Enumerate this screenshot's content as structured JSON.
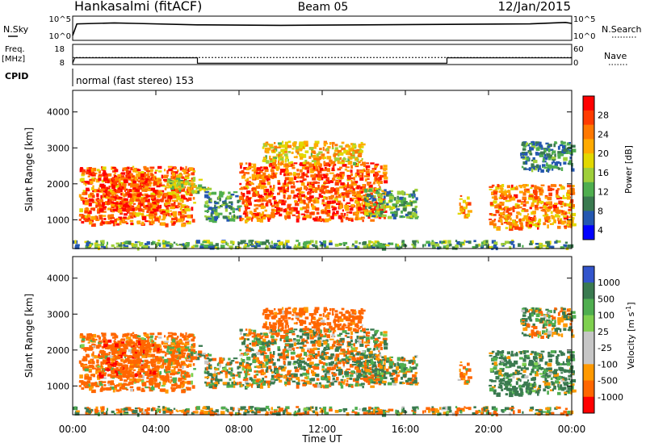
{
  "header": {
    "station": "Hankasalmi (fitACF)",
    "beam": "Beam 05",
    "date": "12/Jan/2015"
  },
  "strip": {
    "nsky_label": "N.Sky",
    "nsky_ticks": [
      "10^5",
      "10^0"
    ],
    "nsearch_label": "N.Search",
    "nsearch_ticks": [
      "10^5",
      "10^0"
    ],
    "freq_label_1": "Freq.",
    "freq_label_2": "[MHz]",
    "freq_ticks": [
      "18",
      "8"
    ],
    "nave_label": "Nave",
    "nave_ticks": [
      "60",
      "0"
    ],
    "cpid_label": "CPID",
    "cpid_text": "normal (fast stereo) 153"
  },
  "x_axis": {
    "label": "Time UT",
    "ticks": [
      "00:00",
      "04:00",
      "08:00",
      "12:00",
      "16:00",
      "20:00",
      "00:00"
    ],
    "range_hours": [
      0,
      24
    ]
  },
  "panels": {
    "power": {
      "ylabel": "Slant Range [km]",
      "yticks": [
        "4000",
        "3000",
        "2000",
        "1000"
      ],
      "colorbar_label": "Power [dB]",
      "colorbar_ticks": [
        "28",
        "24",
        "20",
        "16",
        "12",
        "8",
        "4"
      ]
    },
    "velocity": {
      "ylabel": "Slant Range [km]",
      "yticks": [
        "4000",
        "3000",
        "2000",
        "1000"
      ],
      "colorbar_label_main": "Velocity",
      "colorbar_label_units": "[m s",
      "colorbar_label_exp": "-1",
      "colorbar_label_close": "]",
      "colorbar_ticks": [
        "1000",
        "500",
        "100",
        "25",
        "-25",
        "-100",
        "-500",
        "-1000"
      ]
    }
  },
  "chart_data": {
    "type": "heatmap",
    "x_unit": "hours UT",
    "y_unit": "slant range km",
    "xlim": [
      0,
      24
    ],
    "ylim": [
      200,
      4600
    ],
    "power_colors": [
      "#ff0000",
      "#ff3b00",
      "#ff7800",
      "#ffaa00",
      "#e2d800",
      "#9fcf3a",
      "#4fae4f",
      "#3a7a50",
      "#2457b0",
      "#0000ff"
    ],
    "power_scale_db": [
      0,
      30
    ],
    "velocity_colors": [
      "#3355cc",
      "#3a7a50",
      "#4fae4f",
      "#7fd04f",
      "#c6c6c6",
      "#c6c6c6",
      "#ff9900",
      "#ff6600",
      "#ff0000"
    ],
    "velocity_scale": [
      -1000,
      1000
    ],
    "freq_mhz": [
      8,
      18
    ],
    "freq_trace_mhz": 11.5,
    "nave_trace": [
      {
        "t": 0,
        "v": 4
      },
      {
        "t": 0.1,
        "v": 20
      },
      {
        "t": 6.0,
        "v": 20
      },
      {
        "t": 6.0,
        "v": 4
      },
      {
        "t": 18.0,
        "v": 4
      },
      {
        "t": 18.0,
        "v": 20
      },
      {
        "t": 24,
        "v": 20
      }
    ],
    "nsky_trace": [
      {
        "t": 0,
        "v": 1.0
      },
      {
        "t": 0.2,
        "v": 3.4
      },
      {
        "t": 2,
        "v": 3.6
      },
      {
        "t": 3,
        "v": 3.5
      },
      {
        "t": 6,
        "v": 3.2
      },
      {
        "t": 10,
        "v": 3.1
      },
      {
        "t": 14,
        "v": 3.2
      },
      {
        "t": 18,
        "v": 3.3
      },
      {
        "t": 22,
        "v": 3.4
      },
      {
        "t": 23.7,
        "v": 3.7
      },
      {
        "t": 24,
        "v": 3.5
      }
    ],
    "echo_regions": [
      {
        "t0": 0.3,
        "t1": 5.8,
        "r0": 900,
        "r1": 2500,
        "power": 24,
        "velocity": -150
      },
      {
        "t0": 1.2,
        "t1": 4.0,
        "r0": 1300,
        "r1": 2300,
        "power": 27,
        "velocity": -300
      },
      {
        "t0": 4.5,
        "t1": 6.5,
        "r0": 1800,
        "r1": 2200,
        "power": 14,
        "velocity": -50
      },
      {
        "t0": 6.3,
        "t1": 8.0,
        "r0": 1000,
        "r1": 1800,
        "power": 8,
        "velocity": 20
      },
      {
        "t0": 8.0,
        "t1": 15.0,
        "r0": 1000,
        "r1": 2600,
        "power": 25,
        "velocity": 10
      },
      {
        "t0": 9.0,
        "t1": 14.0,
        "r0": 2600,
        "r1": 3200,
        "power": 18,
        "velocity": -200
      },
      {
        "t0": 14.0,
        "t1": 16.5,
        "r0": 1100,
        "r1": 1900,
        "power": 10,
        "velocity": 15
      },
      {
        "t0": 18.5,
        "t1": 19.0,
        "r0": 1100,
        "r1": 1700,
        "power": 22,
        "velocity": -100
      },
      {
        "t0": 20.0,
        "t1": 24.0,
        "r0": 800,
        "r1": 2000,
        "power": 22,
        "velocity": 150
      },
      {
        "t0": 21.5,
        "t1": 24.0,
        "r0": 2400,
        "r1": 3200,
        "power": 6,
        "velocity": 30
      },
      {
        "t0": 0.0,
        "t1": 24.0,
        "r0": 250,
        "r1": 450,
        "power": 10,
        "velocity": 0
      }
    ]
  }
}
